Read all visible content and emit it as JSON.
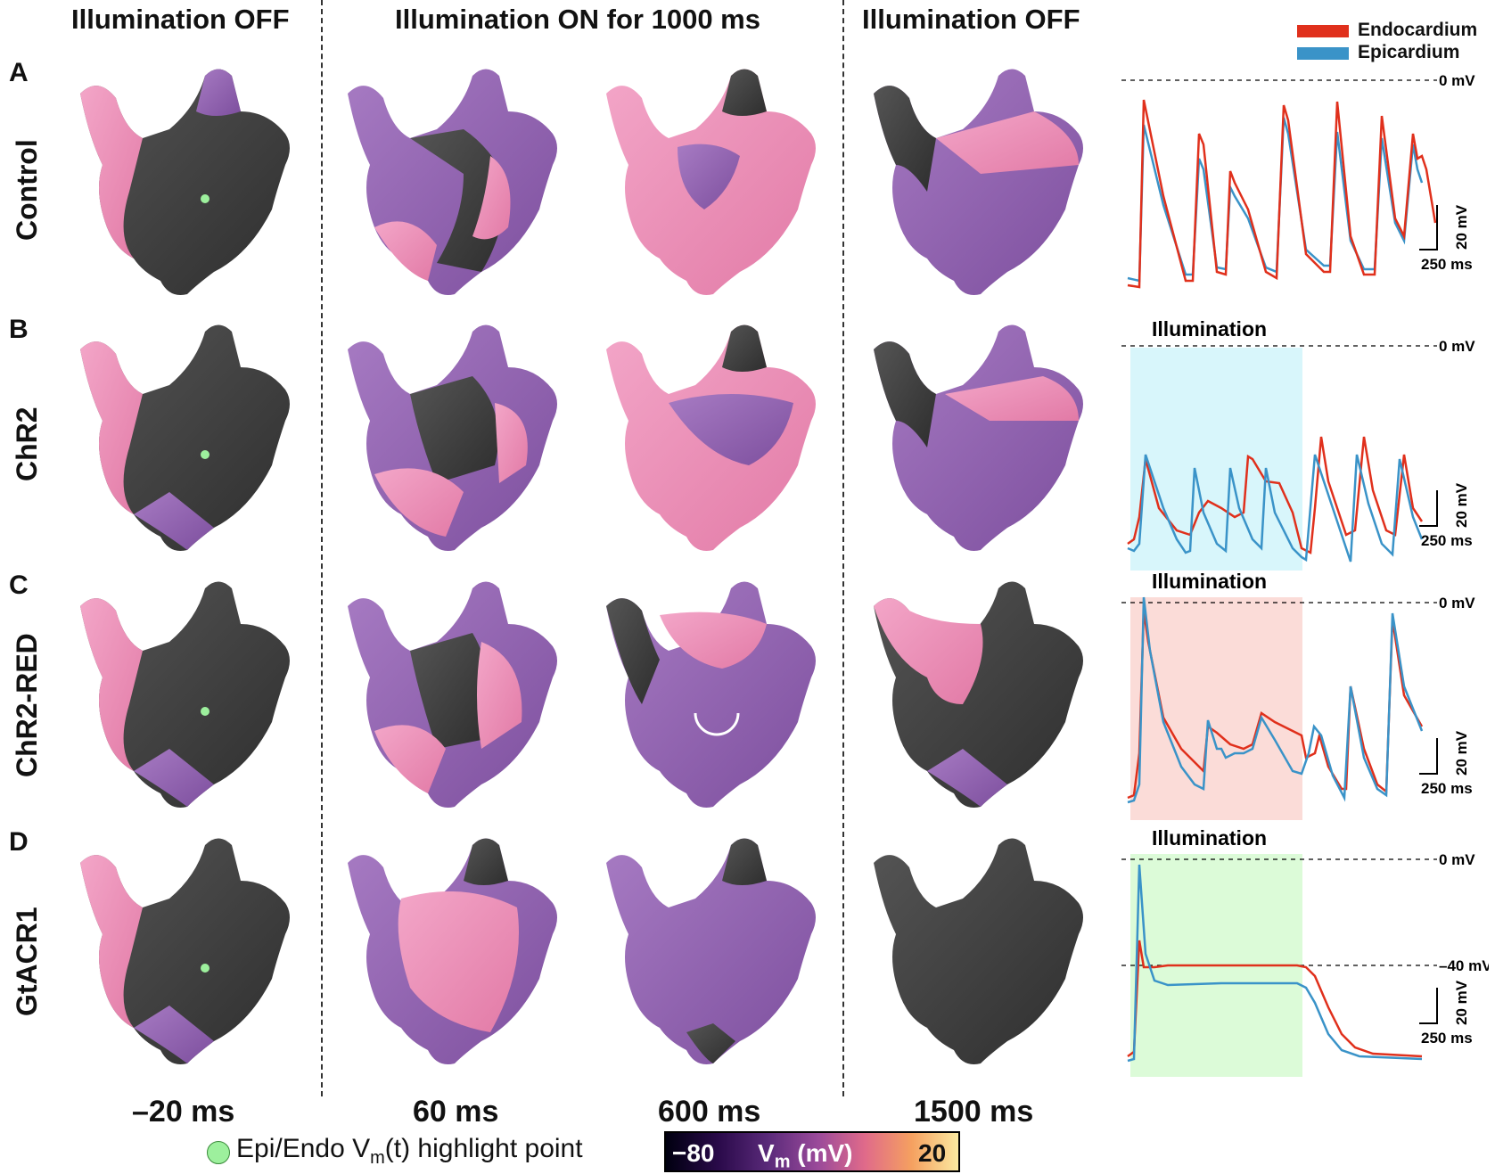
{
  "headers": {
    "col1": "Illumination OFF",
    "col2": "Illumination ON for 1000 ms",
    "col3": "Illumination OFF"
  },
  "rows": [
    {
      "letter": "A",
      "label": "Control"
    },
    {
      "letter": "B",
      "label": "ChR2"
    },
    {
      "letter": "C",
      "label": "ChR2-RED"
    },
    {
      "letter": "D",
      "label": "GtACR1"
    }
  ],
  "times": [
    "–20 ms",
    "60 ms",
    "600 ms",
    "1500 ms"
  ],
  "legend": {
    "endo": "Endocardium",
    "epi": "Epicardium",
    "endo_color": "#e0301c",
    "epi_color": "#3a93c8"
  },
  "traces": {
    "zero_label": "0 mV",
    "minus40_label": "–40 mV",
    "illumination_label": "Illumination",
    "scale_v": "20 mV",
    "scale_t": "250 ms",
    "illum_colors": {
      "B": "#d8f6fb",
      "C": "#fbdcd8",
      "D": "#dcfbd8"
    }
  },
  "bottom": {
    "highlight_text_pre": "Epi/Endo V",
    "highlight_sub": "m",
    "highlight_text_post": "(t) highlight point",
    "cb_min": "−80",
    "cb_label": "V",
    "cb_label_sub": "m",
    "cb_unit": " (mV)",
    "cb_max": "20"
  }
}
